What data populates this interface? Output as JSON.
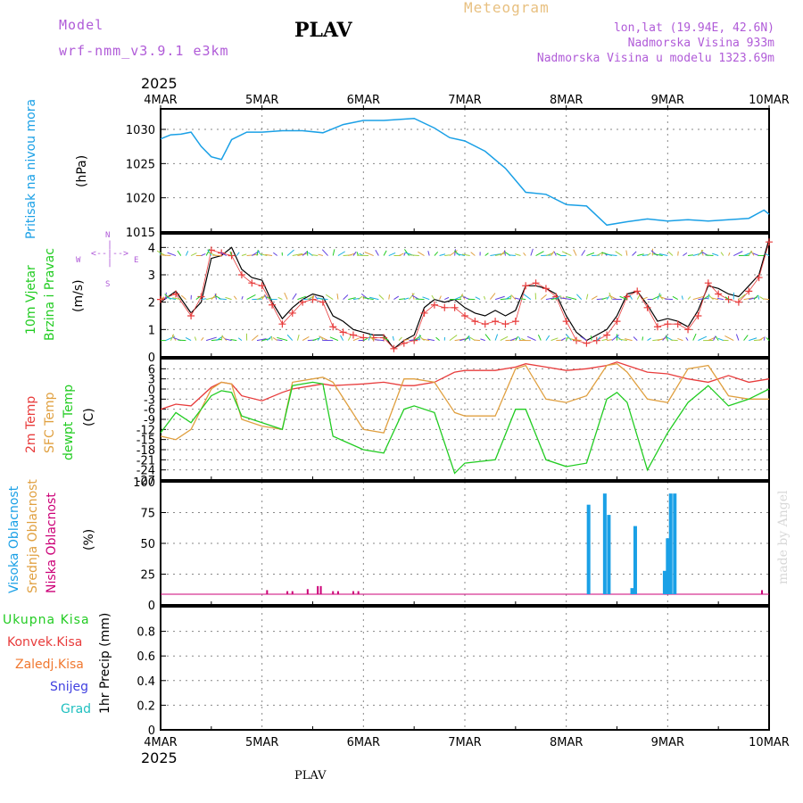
{
  "header": {
    "model_label": "Model",
    "model_name": "wrf-nmm_v3.9.1 e3km",
    "station": "PLAV",
    "meteogram": "Meteogram",
    "lonlat": "lon,lat (19.94E, 42.6N)",
    "elev": "Nadmorska Visina 933m",
    "elev_model": "Nadmorska Visina u modelu 1323.69m",
    "year_top": "2025",
    "year_bottom": "2025",
    "footer_station": "PLAV",
    "watermark": "made by Angel"
  },
  "colors": {
    "pressure": "#1aa0e6",
    "temp2m": "#e83c3c",
    "sfc": "#e0a040",
    "dew": "#22cc22",
    "cloud_high": "#1aa0e6",
    "cloud_low": "#cc0077"
  },
  "chart_data": [
    {
      "type": "line",
      "panel": "pressure",
      "ylabel_line1": "Pritisak na nivou mora",
      "ylabel_line2": "(hPa)",
      "x_labels": [
        "4MAR",
        "5MAR",
        "6MAR",
        "7MAR",
        "8MAR",
        "9MAR",
        "10MAR"
      ],
      "ylim": [
        1015,
        1033
      ],
      "yticks": [
        "1015",
        "1020",
        "1025",
        "1030"
      ],
      "x": [
        0,
        0.1,
        0.2,
        0.3,
        0.4,
        0.5,
        0.6,
        0.7,
        0.85,
        1.0,
        1.2,
        1.4,
        1.6,
        1.8,
        2.0,
        2.2,
        2.4,
        2.5,
        2.7,
        2.85,
        3.0,
        3.2,
        3.4,
        3.6,
        3.8,
        4.0,
        4.2,
        4.4,
        4.6,
        4.8,
        5.0,
        5.2,
        5.4,
        5.6,
        5.8,
        5.95,
        6.0
      ],
      "values": [
        1028.6,
        1029.2,
        1029.3,
        1029.6,
        1027.5,
        1026.0,
        1025.6,
        1028.5,
        1029.6,
        1029.6,
        1029.8,
        1029.8,
        1029.5,
        1030.7,
        1031.3,
        1031.3,
        1031.5,
        1031.6,
        1030.2,
        1028.8,
        1028.3,
        1026.8,
        1024.3,
        1020.8,
        1020.5,
        1019.0,
        1018.8,
        1016.0,
        1016.5,
        1016.9,
        1016.6,
        1016.8,
        1016.6,
        1016.8,
        1017.0,
        1018.2,
        1017.6
      ]
    },
    {
      "type": "line",
      "panel": "wind",
      "ylabel_line1": "10m Vjetar",
      "ylabel_line2": "Brzina i Pravac",
      "ylabel_unit": "(m/s)",
      "compass_n": "N",
      "compass_s": "S",
      "compass_e": "E",
      "compass_w": "W",
      "ylim": [
        0,
        4.5
      ],
      "yticks": [
        "0",
        "1",
        "2",
        "3",
        "4"
      ],
      "series": [
        {
          "name": "speed",
          "x": [
            0,
            0.15,
            0.3,
            0.4,
            0.5,
            0.6,
            0.7,
            0.8,
            0.9,
            1.0,
            1.1,
            1.2,
            1.3,
            1.4,
            1.5,
            1.6,
            1.7,
            1.8,
            1.9,
            2.0,
            2.1,
            2.2,
            2.3,
            2.4,
            2.5,
            2.6,
            2.7,
            2.8,
            2.9,
            3.0,
            3.1,
            3.2,
            3.3,
            3.4,
            3.5,
            3.6,
            3.7,
            3.8,
            3.9,
            4.0,
            4.1,
            4.2,
            4.3,
            4.4,
            4.5,
            4.6,
            4.7,
            4.8,
            4.9,
            5.0,
            5.1,
            5.2,
            5.3,
            5.4,
            5.5,
            5.6,
            5.7,
            5.8,
            5.9,
            6.0
          ],
          "values": [
            2.0,
            2.4,
            1.6,
            2.0,
            3.6,
            3.7,
            4.0,
            3.2,
            2.9,
            2.8,
            2.0,
            1.4,
            1.8,
            2.1,
            2.3,
            2.2,
            1.5,
            1.3,
            1.0,
            0.9,
            0.8,
            0.8,
            0.3,
            0.6,
            0.8,
            1.8,
            2.1,
            2.0,
            2.1,
            1.8,
            1.6,
            1.5,
            1.7,
            1.5,
            1.7,
            2.6,
            2.6,
            2.5,
            2.3,
            1.5,
            0.9,
            0.6,
            0.8,
            1.0,
            1.5,
            2.3,
            2.4,
            1.9,
            1.3,
            1.4,
            1.3,
            1.1,
            1.7,
            2.6,
            2.5,
            2.3,
            2.2,
            2.6,
            3.0,
            4.3
          ]
        },
        {
          "name": "gust",
          "x": [
            0,
            0.15,
            0.3,
            0.4,
            0.5,
            0.6,
            0.7,
            0.8,
            0.9,
            1.0,
            1.1,
            1.2,
            1.3,
            1.4,
            1.5,
            1.6,
            1.7,
            1.8,
            1.9,
            2.0,
            2.1,
            2.2,
            2.3,
            2.4,
            2.5,
            2.6,
            2.7,
            2.8,
            2.9,
            3.0,
            3.1,
            3.2,
            3.3,
            3.4,
            3.5,
            3.6,
            3.7,
            3.8,
            3.9,
            4.0,
            4.1,
            4.2,
            4.3,
            4.4,
            4.5,
            4.6,
            4.7,
            4.8,
            4.9,
            5.0,
            5.1,
            5.2,
            5.3,
            5.4,
            5.5,
            5.6,
            5.7,
            5.8,
            5.9,
            6.0
          ],
          "values": [
            2.1,
            2.3,
            1.5,
            2.2,
            3.9,
            3.8,
            3.7,
            3.0,
            2.7,
            2.6,
            1.9,
            1.2,
            1.6,
            2.0,
            2.1,
            2.0,
            1.1,
            0.9,
            0.8,
            0.7,
            0.7,
            0.7,
            0.3,
            0.5,
            0.6,
            1.6,
            1.9,
            1.8,
            1.8,
            1.5,
            1.3,
            1.2,
            1.3,
            1.2,
            1.3,
            2.6,
            2.7,
            2.5,
            2.2,
            1.3,
            0.6,
            0.5,
            0.6,
            0.8,
            1.3,
            2.2,
            2.4,
            1.8,
            1.1,
            1.2,
            1.2,
            1.0,
            1.5,
            2.7,
            2.3,
            2.1,
            2.0,
            2.4,
            2.9,
            4.2
          ]
        }
      ]
    },
    {
      "type": "line",
      "panel": "temperature",
      "ylabel_t2m": "2m Temp",
      "ylabel_sfc": "SFC Temp",
      "ylabel_dew": "dewpt Temp",
      "ylabel_unit": "(C)",
      "ylim": [
        -27,
        9
      ],
      "yticks": [
        "-27",
        "-24",
        "-21",
        "-18",
        "-15",
        "-12",
        "-9",
        "-6",
        "-3",
        "0",
        "3",
        "6"
      ],
      "series": [
        {
          "name": "2m Temp",
          "x": [
            0,
            0.15,
            0.3,
            0.5,
            0.6,
            0.7,
            0.8,
            1.0,
            1.2,
            1.3,
            1.5,
            1.6,
            1.7,
            2.0,
            2.2,
            2.4,
            2.5,
            2.7,
            2.9,
            3.0,
            3.3,
            3.5,
            3.6,
            3.8,
            4.0,
            4.2,
            4.4,
            4.5,
            4.6,
            4.8,
            5.0,
            5.2,
            5.4,
            5.6,
            5.8,
            6.0
          ],
          "values": [
            -6,
            -4.5,
            -5,
            0.5,
            2,
            1.5,
            -2,
            -3.5,
            -1,
            0,
            1,
            1.5,
            1,
            1.5,
            2,
            1,
            1,
            2,
            5,
            5.5,
            5.5,
            6.5,
            7.5,
            6.5,
            5.5,
            6,
            7,
            8,
            7,
            5,
            4.5,
            3,
            2,
            4,
            2,
            3
          ]
        },
        {
          "name": "SFC Temp",
          "x": [
            0,
            0.15,
            0.3,
            0.5,
            0.6,
            0.7,
            0.8,
            1.0,
            1.2,
            1.3,
            1.5,
            1.6,
            1.7,
            2.0,
            2.2,
            2.4,
            2.5,
            2.7,
            2.9,
            3.0,
            3.3,
            3.5,
            3.6,
            3.8,
            4.0,
            4.2,
            4.4,
            4.5,
            4.6,
            4.8,
            5.0,
            5.2,
            5.4,
            5.6,
            5.8,
            6.0
          ],
          "values": [
            -14,
            -15,
            -12,
            0,
            2,
            1.5,
            -9,
            -11,
            -12,
            2,
            3,
            3.5,
            2,
            -12,
            -13,
            3,
            3,
            2,
            -7,
            -8,
            -8,
            6,
            7,
            -3,
            -4,
            -2,
            7,
            7.5,
            5,
            -3,
            -4,
            6,
            7,
            -2,
            -3,
            -3
          ]
        },
        {
          "name": "dewpt Temp",
          "x": [
            0,
            0.15,
            0.3,
            0.5,
            0.6,
            0.7,
            0.8,
            1.0,
            1.2,
            1.3,
            1.5,
            1.6,
            1.7,
            2.0,
            2.2,
            2.4,
            2.5,
            2.7,
            2.9,
            3.0,
            3.3,
            3.5,
            3.6,
            3.8,
            4.0,
            4.2,
            4.4,
            4.5,
            4.6,
            4.8,
            5.0,
            5.2,
            5.4,
            5.6,
            5.8,
            6.0
          ],
          "values": [
            -13,
            -7,
            -10,
            -2,
            -0.5,
            -1,
            -8,
            -10,
            -12,
            1,
            2,
            1.5,
            -14,
            -18,
            -19,
            -6,
            -5,
            -7,
            -25,
            -22,
            -21,
            -6,
            -6,
            -21,
            -23,
            -22,
            -3,
            -1,
            -4,
            -24,
            -13,
            -4,
            1,
            -5,
            -3,
            0
          ]
        }
      ]
    },
    {
      "type": "bar",
      "panel": "clouds",
      "ylabel_high": "Visoka Oblacnost",
      "ylabel_mid": "Srednja Oblacnost",
      "ylabel_low": "Niska Oblacnost",
      "ylabel_unit": "(%)",
      "ylim": [
        0,
        100
      ],
      "yticks": [
        "0",
        "25",
        "50",
        "75",
        "100"
      ],
      "series": [
        {
          "name": "Visoka Oblacnost",
          "x": [
            4.22,
            4.38,
            4.42,
            4.65,
            4.68,
            4.97,
            5.0,
            5.03,
            5.07
          ],
          "values": [
            88,
            99,
            78,
            6,
            67,
            23,
            55,
            99,
            99
          ]
        },
        {
          "name": "Niska Oblacnost",
          "x": [
            1.05,
            1.25,
            1.3,
            1.45,
            1.55,
            1.58,
            1.7,
            1.75,
            1.9,
            1.95,
            5.93
          ],
          "values": [
            4,
            3,
            3,
            5,
            8,
            8,
            3,
            3,
            3,
            3,
            4
          ]
        }
      ]
    },
    {
      "type": "bar",
      "panel": "precipitation",
      "ylabel": "1hr Precip (mm)",
      "legend": [
        "Ukupna Kisa",
        "Konvek.Kisa",
        "Zaledj.Kisa",
        "Snijeg",
        "Grad"
      ],
      "ylim": [
        0,
        1
      ],
      "yticks": [
        "0",
        "0.2",
        "0.4",
        "0.6",
        "0.8"
      ],
      "values": []
    }
  ]
}
